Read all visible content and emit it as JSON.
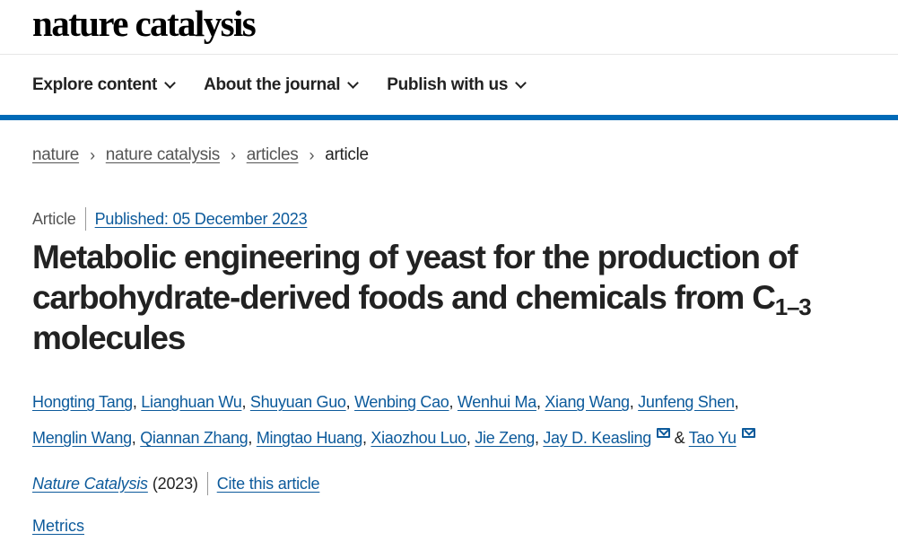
{
  "logo": "nature catalysis",
  "nav": [
    {
      "label": "Explore content"
    },
    {
      "label": "About the journal"
    },
    {
      "label": "Publish with us"
    }
  ],
  "breadcrumb": [
    {
      "label": "nature"
    },
    {
      "label": "nature catalysis"
    },
    {
      "label": "articles"
    },
    {
      "label": "article"
    }
  ],
  "article": {
    "type": "Article",
    "published": "Published: 05 December 2023",
    "title_main": "Metabolic engineering of yeast for the production of carbohydrate-derived foods and chemicals from C",
    "title_sub": "1–3",
    "title_end": " molecules",
    "authors": [
      {
        "name": "Hongting Tang"
      },
      {
        "name": "Lianghuan Wu"
      },
      {
        "name": "Shuyuan Guo"
      },
      {
        "name": "Wenbing Cao"
      },
      {
        "name": "Wenhui Ma"
      },
      {
        "name": "Xiang Wang"
      },
      {
        "name": "Junfeng Shen"
      },
      {
        "name": "Menglin Wang"
      },
      {
        "name": "Qiannan Zhang"
      },
      {
        "name": "Mingtao Huang"
      },
      {
        "name": "Xiaozhou Luo"
      },
      {
        "name": "Jie Zeng"
      },
      {
        "name": "Jay D. Keasling",
        "email": true
      },
      {
        "name": "Tao Yu",
        "email": true
      }
    ],
    "ampersand": "&",
    "journal": "Nature Catalysis",
    "year": "(2023)",
    "cite": "Cite this article",
    "metrics": "Metrics"
  },
  "colors": {
    "accent": "#006ab7",
    "link": "#0c5a9b"
  }
}
